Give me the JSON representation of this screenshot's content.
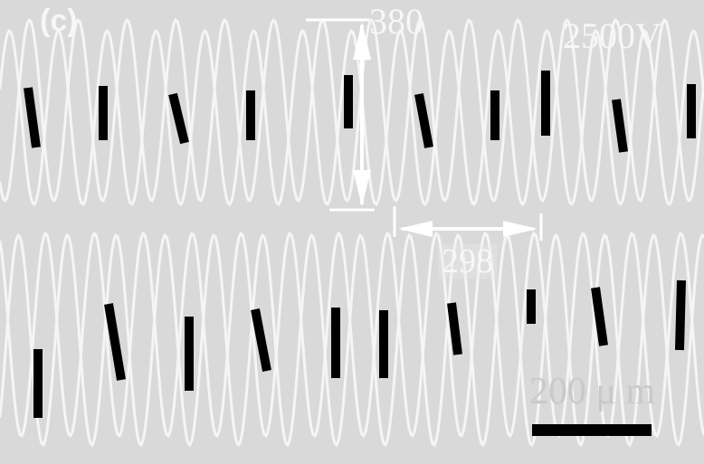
{
  "figure": {
    "panel_label": "(c)",
    "voltage": "2500V",
    "vertical_measure": "380",
    "horizontal_measure": "298",
    "scale_bar_label": "200 μ m"
  },
  "colors": {
    "background": "#d9d9d9",
    "wave_lines": "#f5f5f5",
    "markers": "#000000",
    "text": "#f7f7f7"
  }
}
